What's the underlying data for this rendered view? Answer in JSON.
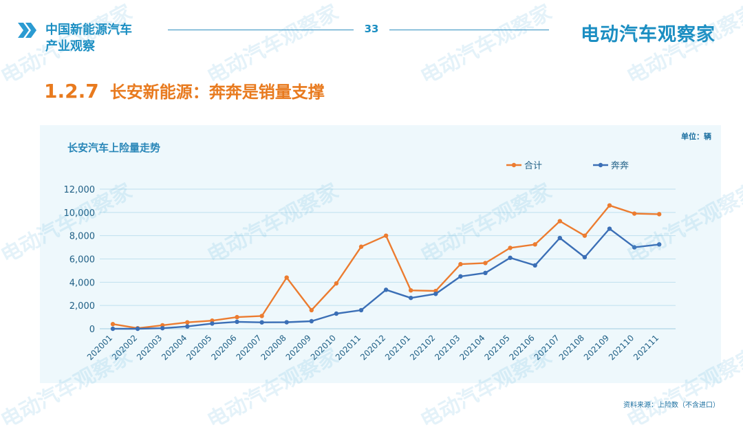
{
  "header": {
    "brand_line1": "中国新能源汽车",
    "brand_line2": "产业观察",
    "page_number": "33",
    "logo": "电动汽车观察家"
  },
  "title": {
    "number": "1.2.7",
    "text": "长安新能源：奔奔是销量支撑"
  },
  "unit_label": "单位：辆",
  "source_label": "资料来源：上险数（不含进口）",
  "watermark": "电动汽车观察家",
  "colors": {
    "accent": "#1b8ec2",
    "orange": "#e87a1e",
    "series_total": "#ec7c30",
    "series_benben": "#3b6fb6"
  },
  "chart_data": {
    "type": "line",
    "title": "长安汽车上险量走势",
    "xlabel": "",
    "ylabel": "",
    "ylim": [
      0,
      12000
    ],
    "yticks": [
      "0",
      "2,000",
      "4,000",
      "6,000",
      "8,000",
      "10,000",
      "12,000"
    ],
    "grid": true,
    "legend_position": "top-right",
    "categories": [
      "202001",
      "202002",
      "202003",
      "202004",
      "202005",
      "202006",
      "202007",
      "202008",
      "202009",
      "202010",
      "202011",
      "202012",
      "202101",
      "202102",
      "202103",
      "202104",
      "202105",
      "202106",
      "202107",
      "202108",
      "202109",
      "202110",
      "202111"
    ],
    "series": [
      {
        "name": "合计",
        "color": "#ec7c30",
        "values": [
          400,
          50,
          300,
          550,
          700,
          1000,
          1100,
          4400,
          1600,
          3900,
          7050,
          8000,
          3300,
          3250,
          5550,
          5650,
          6950,
          7250,
          9250,
          8000,
          10600,
          9900,
          9850
        ]
      },
      {
        "name": "奔奔",
        "color": "#3b6fb6",
        "values": [
          0,
          0,
          50,
          200,
          450,
          600,
          550,
          560,
          650,
          1300,
          1600,
          3350,
          2650,
          3000,
          4500,
          4800,
          6100,
          5450,
          7800,
          6150,
          8600,
          7000,
          7250
        ]
      }
    ]
  }
}
